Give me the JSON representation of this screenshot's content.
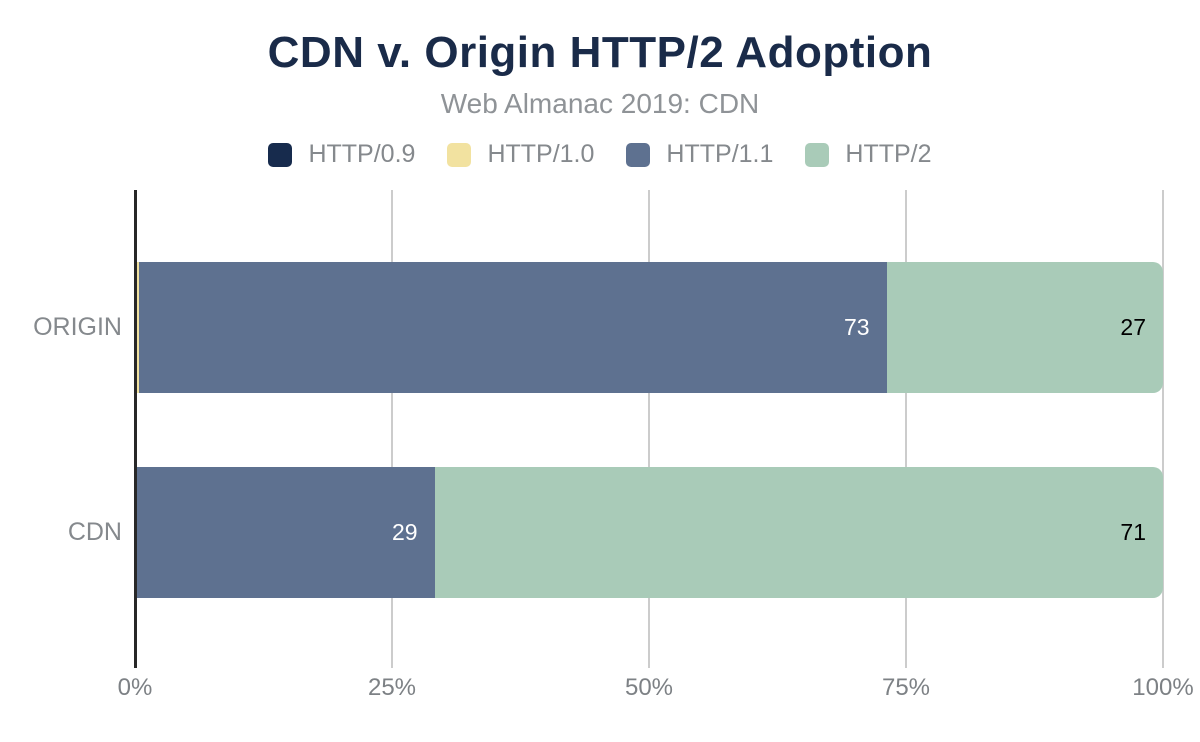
{
  "chart_data": {
    "type": "bar",
    "orientation": "horizontal",
    "stacked": true,
    "title": "CDN v. Origin HTTP/2 Adoption",
    "subtitle": "Web Almanac 2019: CDN",
    "categories": [
      "ORIGIN",
      "CDN"
    ],
    "series": [
      {
        "name": "HTTP/0.9",
        "color": "#172b4d",
        "label_color": "#ffffff",
        "values": [
          0,
          0
        ],
        "labels": [
          "",
          ""
        ]
      },
      {
        "name": "HTTP/1.0",
        "color": "#f2e2a0",
        "label_color": "#1a2b49",
        "values": [
          0.2,
          0
        ],
        "labels": [
          "",
          ""
        ]
      },
      {
        "name": "HTTP/1.1",
        "color": "#5e7190",
        "label_color": "#ffffff",
        "values": [
          73,
          29
        ],
        "labels": [
          "73",
          "29"
        ]
      },
      {
        "name": "HTTP/2",
        "color": "#a9cbb8",
        "label_color": "#000000",
        "values": [
          27,
          71
        ],
        "labels": [
          "27",
          "71"
        ]
      }
    ],
    "x_ticks": [
      {
        "label": "0%",
        "value": 0
      },
      {
        "label": "25%",
        "value": 25
      },
      {
        "label": "50%",
        "value": 50
      },
      {
        "label": "75%",
        "value": 75
      },
      {
        "label": "100%",
        "value": 100
      }
    ],
    "xlim": [
      0,
      100
    ],
    "grid": true,
    "legend_position": "top",
    "colors": {
      "title": "#1a2b49",
      "subtitle_text": "#8f9397",
      "legend_text": "#85898d",
      "axis_text": "#7d8185",
      "category_text": "#85898d",
      "gridline": "#cccccc",
      "axis_line": "#282828",
      "background": "#ffffff"
    }
  }
}
